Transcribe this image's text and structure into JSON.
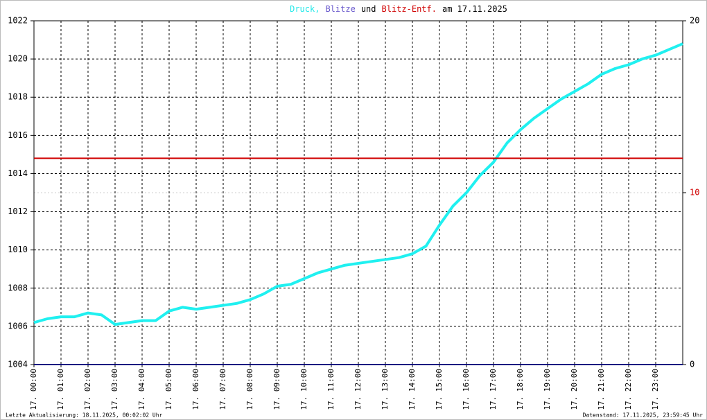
{
  "chart_data": {
    "type": "line",
    "title": [
      {
        "text": "Druck,",
        "color": "#20e8e8"
      },
      {
        "text": "Blitze",
        "color": "#6a5acd"
      },
      {
        "text": "und",
        "color": "#000000"
      },
      {
        "text": "Blitz-Entf.",
        "color": "#d00000"
      },
      {
        "text": "am 17.11.2025",
        "color": "#000000"
      }
    ],
    "footer_left": "Letzte Aktualisierung: 18.11.2025, 00:02:02 Uhr",
    "footer_right": "Datenstand: 17.11.2025, 23:59:45 Uhr",
    "x": [
      0,
      0.5,
      1,
      1.5,
      2,
      2.5,
      3,
      3.5,
      4,
      4.5,
      5,
      5.5,
      6,
      6.5,
      7,
      7.5,
      8,
      8.5,
      9,
      9.5,
      10,
      10.5,
      11,
      11.5,
      12,
      12.5,
      13,
      13.5,
      14,
      14.5,
      15,
      15.5,
      16,
      16.5,
      17,
      17.5,
      18,
      18.5,
      19,
      19.5,
      20,
      20.5,
      21,
      21.5,
      22,
      22.5,
      23,
      23.5,
      24
    ],
    "xlim": [
      0,
      24
    ],
    "xticks": [
      {
        "value": 0,
        "label": "17. 00:00"
      },
      {
        "value": 1,
        "label": "17. 01:00"
      },
      {
        "value": 2,
        "label": "17. 02:00"
      },
      {
        "value": 3,
        "label": "17. 03:00"
      },
      {
        "value": 4,
        "label": "17. 04:00"
      },
      {
        "value": 5,
        "label": "17. 05:00"
      },
      {
        "value": 6,
        "label": "17. 06:00"
      },
      {
        "value": 7,
        "label": "17. 07:00"
      },
      {
        "value": 8,
        "label": "17. 08:00"
      },
      {
        "value": 9,
        "label": "17. 09:00"
      },
      {
        "value": 10,
        "label": "17. 10:00"
      },
      {
        "value": 11,
        "label": "17. 11:00"
      },
      {
        "value": 12,
        "label": "17. 12:00"
      },
      {
        "value": 13,
        "label": "17. 13:00"
      },
      {
        "value": 14,
        "label": "17. 14:00"
      },
      {
        "value": 15,
        "label": "17. 15:00"
      },
      {
        "value": 16,
        "label": "17. 16:00"
      },
      {
        "value": 17,
        "label": "17. 17:00"
      },
      {
        "value": 18,
        "label": "17. 18:00"
      },
      {
        "value": 19,
        "label": "17. 19:00"
      },
      {
        "value": 20,
        "label": "17. 20:00"
      },
      {
        "value": 21,
        "label": "17. 21:00"
      },
      {
        "value": 22,
        "label": "17. 22:00"
      },
      {
        "value": 23,
        "label": "17. 23:00"
      }
    ],
    "ylim": [
      1004,
      1022
    ],
    "yticks": [
      1004,
      1006,
      1008,
      1010,
      1012,
      1014,
      1016,
      1018,
      1020,
      1022
    ],
    "y2lim": [
      0,
      20
    ],
    "y2ticks": [
      0,
      10,
      20
    ],
    "y2tick_colors": [
      "#000000",
      "#d00000",
      "#000000"
    ],
    "grid": true,
    "series": [
      {
        "name": "Druck",
        "color": "#20f0f0",
        "values": [
          1006.2,
          1006.4,
          1006.5,
          1006.5,
          1006.7,
          1006.6,
          1006.1,
          1006.2,
          1006.3,
          1006.3,
          1006.8,
          1007.0,
          1006.9,
          1007.0,
          1007.1,
          1007.2,
          1007.4,
          1007.7,
          1008.1,
          1008.2,
          1008.5,
          1008.8,
          1009.0,
          1009.2,
          1009.3,
          1009.4,
          1009.5,
          1009.6,
          1009.8,
          1010.2,
          1011.3,
          1012.3,
          1013.0,
          1013.9,
          1014.6,
          1015.6,
          1016.3,
          1016.9,
          1017.4,
          1017.9,
          1018.3,
          1018.7,
          1019.2,
          1019.5,
          1019.7,
          1020.0,
          1020.2,
          1020.5,
          1020.8
        ]
      },
      {
        "name": "Blitz-Entf.",
        "color": "#d00000",
        "axis": "y2",
        "x": [
          0,
          24
        ],
        "values": [
          12,
          12
        ]
      },
      {
        "name": "Blitze",
        "color": "#000080",
        "axis": "y2",
        "x": [
          0,
          24
        ],
        "values": [
          0,
          0
        ]
      }
    ]
  }
}
